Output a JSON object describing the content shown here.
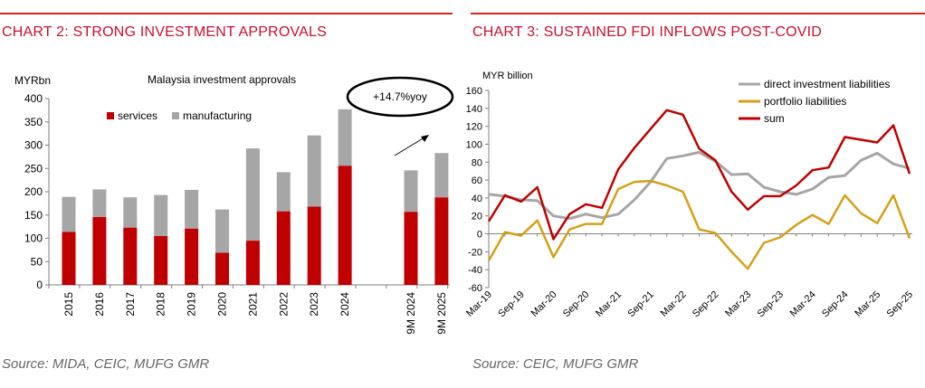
{
  "panels": {
    "left": {
      "title": "CHART 2: STRONG INVESTMENT APPROVALS",
      "source": "Source: MIDA, CEIC, MUFG GMR"
    },
    "right": {
      "title": "CHART 3: SUSTAINED FDI INFLOWS POST-COVID",
      "source": "Source: CEIC, MUFG GMR"
    }
  },
  "chart_data": [
    {
      "type": "bar",
      "stacked": true,
      "title": "Malaysia investment approvals",
      "ylabel": "MYRbn",
      "ylim": [
        0,
        400
      ],
      "yticks": [
        0,
        50,
        100,
        150,
        200,
        250,
        300,
        350,
        400
      ],
      "categories": [
        "2015",
        "2016",
        "2017",
        "2018",
        "2019",
        "2020",
        "2021",
        "2022",
        "2023",
        "2024",
        "9M 2024",
        "9M 2025"
      ],
      "series": [
        {
          "name": "services",
          "color": "#c00000",
          "values": [
            114,
            146,
            123,
            105,
            121,
            69,
            95,
            158,
            168,
            256,
            157,
            188
          ]
        },
        {
          "name": "manufacturing",
          "color": "#a6a6a6",
          "values": [
            75,
            59,
            65,
            88,
            83,
            93,
            198,
            84,
            153,
            121,
            89,
            95
          ]
        }
      ],
      "legend_position": "top-left",
      "annotation": "+14.7%yoy",
      "grid": false
    },
    {
      "type": "line",
      "ylabel": "MYR billion",
      "ylim": [
        -60,
        160
      ],
      "yticks": [
        -60,
        -40,
        -20,
        0,
        20,
        40,
        60,
        80,
        100,
        120,
        140,
        160
      ],
      "x": [
        "Mar-19",
        "Jun-19",
        "Sep-19",
        "Dec-19",
        "Mar-20",
        "Jun-20",
        "Sep-20",
        "Dec-20",
        "Mar-21",
        "Jun-21",
        "Sep-21",
        "Dec-21",
        "Mar-22",
        "Jun-22",
        "Sep-22",
        "Dec-22",
        "Mar-23",
        "Jun-23",
        "Sep-23",
        "Dec-23",
        "Mar-24",
        "Jun-24",
        "Sep-24",
        "Dec-24",
        "Mar-25",
        "Jun-25",
        "Sep-25"
      ],
      "xtick_labels": [
        "Mar-19",
        "Sep-19",
        "Mar-20",
        "Sep-20",
        "Mar-21",
        "Sep-21",
        "Mar-22",
        "Sep-22",
        "Mar-23",
        "Sep-23",
        "Mar-24",
        "Sep-24",
        "Mar-25",
        "Sep-25"
      ],
      "series": [
        {
          "name": "direct investment liabilities",
          "color": "#a6a6a6",
          "values": [
            44,
            42,
            38,
            37,
            20,
            17,
            22,
            18,
            22,
            38,
            58,
            84,
            87,
            91,
            81,
            66,
            67,
            52,
            47,
            44,
            50,
            63,
            65,
            82,
            90,
            78,
            73
          ]
        },
        {
          "name": "portfolio liabilities",
          "color": "#d4a017",
          "values": [
            -30,
            2,
            -2,
            15,
            -26,
            5,
            11,
            11,
            50,
            58,
            59,
            54,
            47,
            5,
            1,
            -20,
            -39,
            -10,
            -4,
            10,
            21,
            11,
            43,
            23,
            12,
            43,
            -5
          ]
        },
        {
          "name": "sum",
          "color": "#c00000",
          "values": [
            14,
            43,
            36,
            52,
            -6,
            22,
            33,
            29,
            72,
            96,
            117,
            138,
            133,
            95,
            82,
            47,
            27,
            42,
            42,
            54,
            71,
            74,
            108,
            105,
            102,
            121,
            67
          ]
        }
      ],
      "legend_position": "top-right",
      "grid": false
    }
  ]
}
